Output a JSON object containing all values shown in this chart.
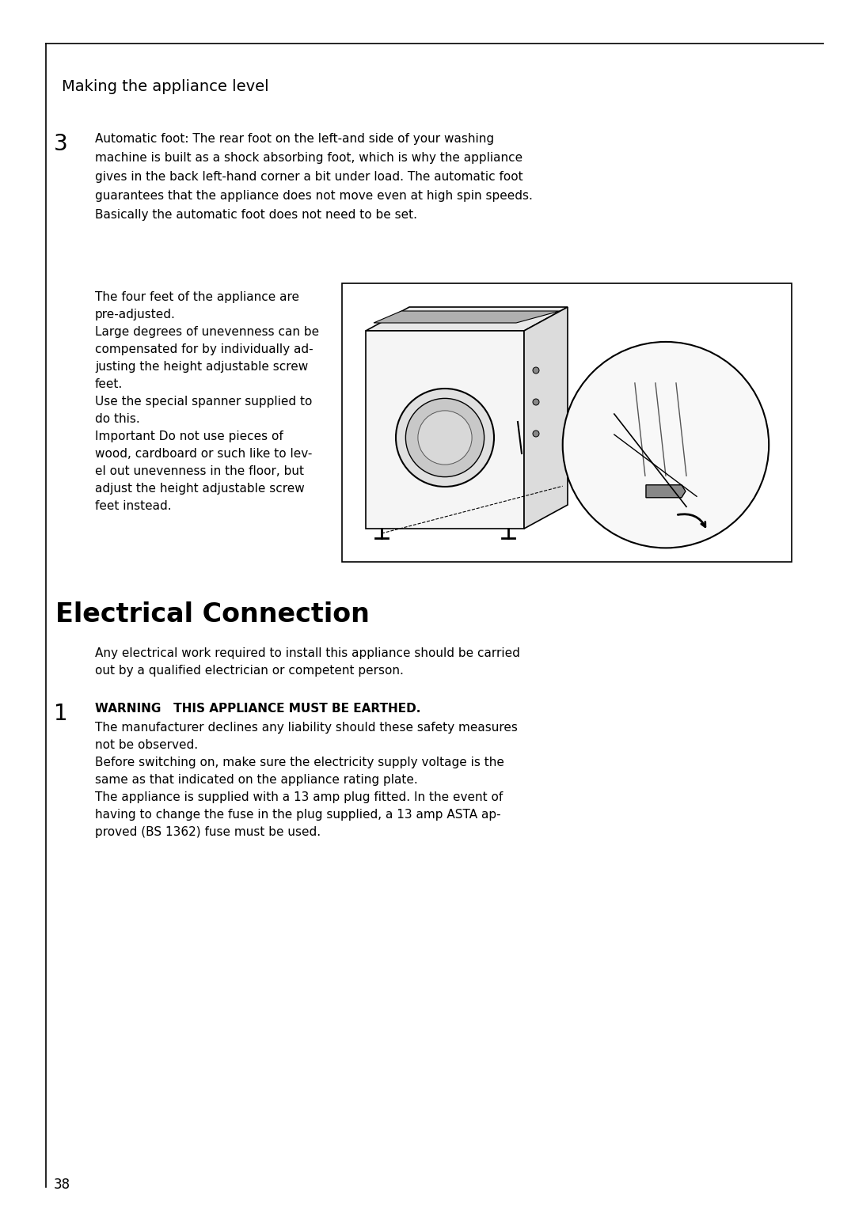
{
  "page_bg": "#ffffff",
  "border_color": "#000000",
  "page_number": "38",
  "section_title": "Making the appliance level",
  "section_title_fontsize": 14,
  "item3_number": "3",
  "item3_fontsize": 20,
  "item3_text": "Automatic foot: The rear foot on the left-⁠and side of your washing\nmachine is built as a shock abso⁠rb⁠ing⁠ foot, which is why the appliance\ngives in the back left-hand corner⁠ a⁠ bit under load. The automatic foot\nguarantees that the appliance does⁠ not⁠ move even at high spin speeds.\nBasically the automatic foot does not need to be set.",
  "item3_text_fontsize": 11,
  "body_text_lines": [
    "The four feet of the appliance are",
    "pre-adjusted.",
    "Large degrees of unevenness can be",
    "compensated for by individually ad-",
    "justing the height adjustable screw",
    "feet.",
    "Use the special spanner supplied to",
    "do this.",
    "Important Do not use pieces of",
    "wood, cardboard or such like to lev-",
    "el out unevenness in the floor, but",
    "adjust the height adjustable screw",
    "feet instead."
  ],
  "body_text_fontsize": 11,
  "section2_title": "Electrical Connection",
  "section2_title_fontsize": 24,
  "intro_text": "Any electrical work required to install this appliance should be carried\nout by a qualified electrician or competent person.",
  "intro_text_fontsize": 11,
  "item1_number": "1",
  "item1_fontsize": 20,
  "item1_text_bold": "WARNING   THIS APPLIANCE MUST BE EARTHED.",
  "item1_body_lines": [
    "The manufacturer declines any liability should these safety measures",
    "not be observed.",
    "Before switching on, make sure the electricity supply voltage is the",
    "same as that indicated on the appliance rating plate.",
    "The appliance is supplied with a 13 amp plug fitted. In the event of",
    "having to change the fuse in the plug supplied, a 13 amp ASTA ap-",
    "proved (BS 1362) fuse must be used."
  ],
  "item1_text_fontsize": 11
}
